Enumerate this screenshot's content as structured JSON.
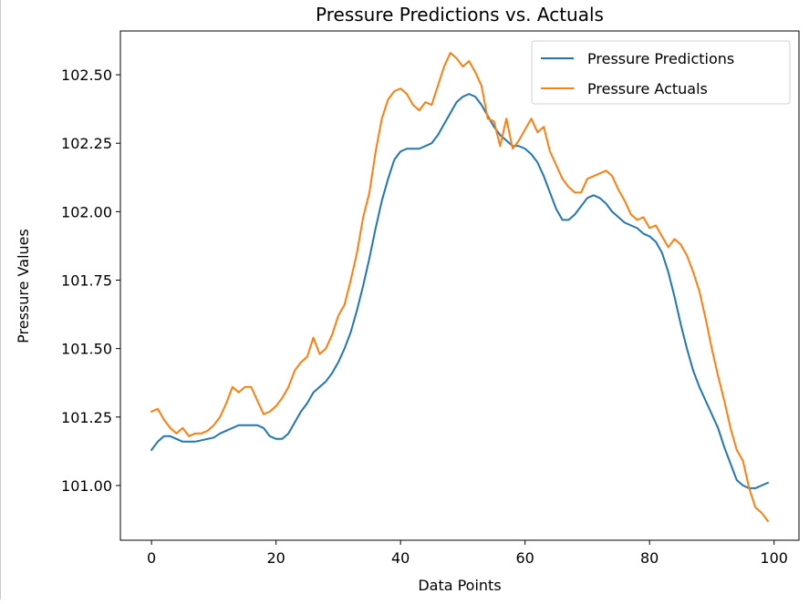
{
  "chart_data": {
    "type": "line",
    "title": "Pressure Predictions vs. Actuals",
    "xlabel": "Data Points",
    "ylabel": "Pressure Values",
    "xlim": [
      -5,
      104
    ],
    "ylim": [
      100.8,
      102.66
    ],
    "xticks": [
      0,
      20,
      40,
      60,
      80,
      100
    ],
    "xtick_labels": [
      "0",
      "20",
      "40",
      "60",
      "80",
      "100"
    ],
    "yticks": [
      101.0,
      101.25,
      101.5,
      101.75,
      102.0,
      102.25,
      102.5
    ],
    "ytick_labels": [
      "101.00",
      "101.25",
      "101.50",
      "101.75",
      "102.00",
      "102.25",
      "102.50"
    ],
    "grid": false,
    "legend_position": "upper right",
    "x": [
      0,
      1,
      2,
      3,
      4,
      5,
      6,
      7,
      8,
      9,
      10,
      11,
      12,
      13,
      14,
      15,
      16,
      17,
      18,
      19,
      20,
      21,
      22,
      23,
      24,
      25,
      26,
      27,
      28,
      29,
      30,
      31,
      32,
      33,
      34,
      35,
      36,
      37,
      38,
      39,
      40,
      41,
      42,
      43,
      44,
      45,
      46,
      47,
      48,
      49,
      50,
      51,
      52,
      53,
      54,
      55,
      56,
      57,
      58,
      59,
      60,
      61,
      62,
      63,
      64,
      65,
      66,
      67,
      68,
      69,
      70,
      71,
      72,
      73,
      74,
      75,
      76,
      77,
      78,
      79,
      80,
      81,
      82,
      83,
      84,
      85,
      86,
      87,
      88,
      89,
      90,
      91,
      92,
      93,
      94,
      95,
      96,
      97,
      98,
      99
    ],
    "series": [
      {
        "name": "Pressure Predictions",
        "color": "#1f77b4",
        "values": [
          101.13,
          101.16,
          101.18,
          101.18,
          101.17,
          101.16,
          101.16,
          101.16,
          101.165,
          101.17,
          101.175,
          101.19,
          101.2,
          101.21,
          101.22,
          101.22,
          101.22,
          101.22,
          101.21,
          101.18,
          101.17,
          101.17,
          101.19,
          101.23,
          101.27,
          101.3,
          101.34,
          101.36,
          101.38,
          101.41,
          101.45,
          101.5,
          101.56,
          101.64,
          101.73,
          101.83,
          101.94,
          102.04,
          102.12,
          102.19,
          102.22,
          102.23,
          102.23,
          102.23,
          102.24,
          102.25,
          102.28,
          102.32,
          102.36,
          102.4,
          102.42,
          102.43,
          102.42,
          102.39,
          102.35,
          102.31,
          102.28,
          102.26,
          102.24,
          102.24,
          102.23,
          102.21,
          102.18,
          102.13,
          102.07,
          102.01,
          101.97,
          101.97,
          101.99,
          102.02,
          102.05,
          102.06,
          102.05,
          102.03,
          102.0,
          101.98,
          101.96,
          101.95,
          101.94,
          101.92,
          101.91,
          101.89,
          101.85,
          101.78,
          101.69,
          101.59,
          101.5,
          101.42,
          101.36,
          101.31,
          101.26,
          101.21,
          101.14,
          101.08,
          101.02,
          101.0,
          100.99,
          100.99,
          101.0,
          101.01
        ]
      },
      {
        "name": "Pressure Actuals",
        "color": "#ff7f0e",
        "values": [
          101.27,
          101.28,
          101.24,
          101.21,
          101.19,
          101.21,
          101.18,
          101.19,
          101.19,
          101.2,
          101.22,
          101.25,
          101.3,
          101.36,
          101.34,
          101.36,
          101.36,
          101.31,
          101.26,
          101.27,
          101.29,
          101.32,
          101.36,
          101.42,
          101.45,
          101.47,
          101.54,
          101.48,
          101.5,
          101.55,
          101.62,
          101.66,
          101.75,
          101.85,
          101.98,
          102.07,
          102.22,
          102.34,
          102.41,
          102.44,
          102.45,
          102.43,
          102.39,
          102.37,
          102.4,
          102.39,
          102.46,
          102.53,
          102.58,
          102.56,
          102.53,
          102.55,
          102.51,
          102.46,
          102.34,
          102.33,
          102.24,
          102.34,
          102.23,
          102.26,
          102.3,
          102.34,
          102.29,
          102.31,
          102.22,
          102.17,
          102.12,
          102.09,
          102.07,
          102.07,
          102.12,
          102.13,
          102.14,
          102.15,
          102.13,
          102.08,
          102.04,
          101.99,
          101.97,
          101.98,
          101.94,
          101.95,
          101.91,
          101.87,
          101.9,
          101.88,
          101.84,
          101.78,
          101.71,
          101.61,
          101.5,
          101.4,
          101.31,
          101.21,
          101.13,
          101.09,
          100.99,
          100.92,
          100.9,
          100.87
        ]
      }
    ]
  }
}
